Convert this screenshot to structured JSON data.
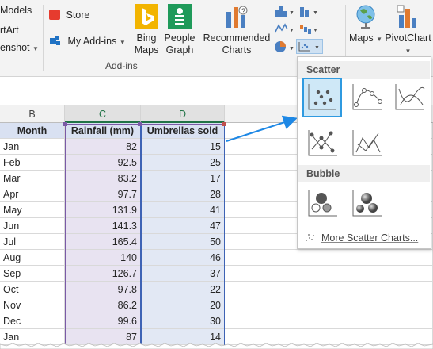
{
  "ribbon": {
    "left_items": [
      "Models",
      "rtArt",
      "enshot"
    ],
    "store_label": "Store",
    "addins_label": "My Add-ins",
    "bing_maps_label": [
      "Bing",
      "Maps"
    ],
    "people_graph_label": [
      "People",
      "Graph"
    ],
    "addins_group_label": "Add-ins",
    "recommended_charts_label": [
      "Recommended",
      "Charts"
    ],
    "maps_label": "Maps",
    "pivotchart_label": "PivotChart"
  },
  "sheet": {
    "columns": [
      "B",
      "C",
      "D"
    ],
    "header": {
      "month": "Month",
      "rainfall": "Rainfall (mm)",
      "umbrellas": "Umbrellas sold"
    },
    "rows": [
      {
        "month": "Jan",
        "rainfall": "82",
        "umbrellas": "15"
      },
      {
        "month": "Feb",
        "rainfall": "92.5",
        "umbrellas": "25"
      },
      {
        "month": "Mar",
        "rainfall": "83.2",
        "umbrellas": "17"
      },
      {
        "month": "Apr",
        "rainfall": "97.7",
        "umbrellas": "28"
      },
      {
        "month": "May",
        "rainfall": "131.9",
        "umbrellas": "41"
      },
      {
        "month": "Jun",
        "rainfall": "141.3",
        "umbrellas": "47"
      },
      {
        "month": "Jul",
        "rainfall": "165.4",
        "umbrellas": "50"
      },
      {
        "month": "Aug",
        "rainfall": "140",
        "umbrellas": "46"
      },
      {
        "month": "Sep",
        "rainfall": "126.7",
        "umbrellas": "37"
      },
      {
        "month": "Oct",
        "rainfall": "97.8",
        "umbrellas": "22"
      },
      {
        "month": "Nov",
        "rainfall": "86.2",
        "umbrellas": "20"
      },
      {
        "month": "Dec",
        "rainfall": "99.6",
        "umbrellas": "30"
      },
      {
        "month": "Jan",
        "rainfall": "87",
        "umbrellas": "14"
      }
    ]
  },
  "dropdown": {
    "scatter_heading": "Scatter",
    "bubble_heading": "Bubble",
    "more_link": "More Scatter Charts..."
  },
  "colors": {
    "accent": "#2f9ae0",
    "excel_green": "#217346",
    "arrow": "#1e88e5"
  }
}
